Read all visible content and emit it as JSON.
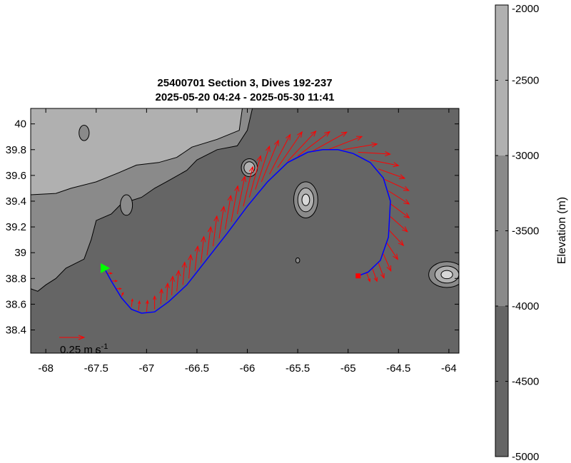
{
  "title_line1": "25400701 Section 3, Dives 192-237",
  "title_line2": "2025-05-20 04:24 - 2025-05-30 11:41",
  "colorbar_label": "Elevation (m)",
  "scale_label": "0.25 m s",
  "scale_label_sup": "-1",
  "chart_data": {
    "type": "map",
    "xlim": [
      -68.15,
      -63.9
    ],
    "ylim": [
      38.22,
      40.12
    ],
    "xticks": [
      -68,
      -67.5,
      -67,
      -66.5,
      -66,
      -65.5,
      -65,
      -64.5,
      -64
    ],
    "xtick_labels": [
      "-68",
      "-67.5",
      "-67",
      "-66.5",
      "-66",
      "-65.5",
      "-65",
      "-64.5",
      "-64"
    ],
    "yticks": [
      38.4,
      38.6,
      38.8,
      39,
      39.2,
      39.4,
      39.6,
      39.8,
      40
    ],
    "ytick_labels": [
      "38.4",
      "38.6",
      "38.8",
      "39",
      "39.2",
      "39.4",
      "39.6",
      "39.8",
      "40"
    ],
    "colorbar": {
      "min": -5000,
      "max": -2000,
      "ticks": [
        -2000,
        -2500,
        -3000,
        -3500,
        -4000,
        -4500,
        -5000
      ],
      "tick_labels": [
        "-2000",
        "-2500",
        "-3000",
        "-3500",
        "-4000",
        "-4500",
        "-5000"
      ],
      "bands": [
        {
          "from": -3000,
          "to": -2000,
          "color": "#b0b0b0"
        },
        {
          "from": -4000,
          "to": -3000,
          "color": "#8a8a8a"
        },
        {
          "from": -5000,
          "to": -4000,
          "color": "#656565"
        }
      ]
    },
    "land_contours": {
      "shelf_3000": [
        [
          -68.15,
          40.12
        ],
        [
          -66.05,
          40.12
        ],
        [
          -66.08,
          39.95
        ],
        [
          -66.3,
          39.88
        ],
        [
          -66.55,
          39.82
        ],
        [
          -66.7,
          39.74
        ],
        [
          -66.88,
          39.7
        ],
        [
          -67.1,
          39.68
        ],
        [
          -67.28,
          39.62
        ],
        [
          -67.5,
          39.55
        ],
        [
          -67.75,
          39.5
        ],
        [
          -67.9,
          39.46
        ],
        [
          -68.15,
          39.45
        ]
      ],
      "slope_4000": [
        [
          -68.15,
          40.12
        ],
        [
          -65.95,
          40.12
        ],
        [
          -66.0,
          39.95
        ],
        [
          -66.1,
          39.83
        ],
        [
          -66.3,
          39.8
        ],
        [
          -66.5,
          39.72
        ],
        [
          -66.6,
          39.64
        ],
        [
          -66.78,
          39.56
        ],
        [
          -66.92,
          39.5
        ],
        [
          -67.05,
          39.43
        ],
        [
          -67.25,
          39.38
        ],
        [
          -67.35,
          39.3
        ],
        [
          -67.5,
          39.25
        ],
        [
          -67.55,
          39.1
        ],
        [
          -67.62,
          38.95
        ],
        [
          -67.8,
          38.88
        ],
        [
          -67.9,
          38.8
        ],
        [
          -68.0,
          38.75
        ],
        [
          -68.08,
          38.7
        ],
        [
          -68.15,
          38.72
        ]
      ]
    },
    "seamounts": [
      {
        "lon": -65.42,
        "lat": 39.41,
        "rx": 0.12,
        "ry": 0.14,
        "levels": 3
      },
      {
        "lon": -64.02,
        "lat": 38.83,
        "rx": 0.18,
        "ry": 0.1,
        "levels": 3
      },
      {
        "lon": -65.98,
        "lat": 39.66,
        "rx": 0.08,
        "ry": 0.07,
        "levels": 2
      },
      {
        "lon": -67.62,
        "lat": 39.93,
        "rx": 0.05,
        "ry": 0.06,
        "levels": 1
      },
      {
        "lon": -67.2,
        "lat": 39.37,
        "rx": 0.06,
        "ry": 0.08,
        "levels": 1
      },
      {
        "lon": -65.5,
        "lat": 38.94,
        "rx": 0.02,
        "ry": 0.02,
        "levels": 1
      }
    ],
    "track": {
      "color": "#0000ff",
      "lon": [
        -67.42,
        -67.35,
        -67.25,
        -67.15,
        -67.05,
        -66.92,
        -66.78,
        -66.6,
        -66.4,
        -66.2,
        -66.0,
        -65.8,
        -65.6,
        -65.4,
        -65.25,
        -65.1,
        -64.95,
        -64.78,
        -64.65,
        -64.58,
        -64.6,
        -64.68,
        -64.8,
        -64.9
      ],
      "lat": [
        38.88,
        38.78,
        38.65,
        38.56,
        38.53,
        38.54,
        38.62,
        38.75,
        38.95,
        39.15,
        39.36,
        39.55,
        39.7,
        39.78,
        39.8,
        39.8,
        39.77,
        39.7,
        39.58,
        39.4,
        39.12,
        38.94,
        38.85,
        38.82
      ]
    },
    "start_marker": {
      "lon": -67.42,
      "lat": 38.88,
      "color": "#00ff00",
      "shape": "triangle"
    },
    "end_marker": {
      "lon": -64.9,
      "lat": 38.82,
      "color": "#ff0000",
      "shape": "square"
    },
    "velocity_vectors": {
      "color": "#ff0000",
      "scale_ms": 0.25,
      "items": [
        {
          "lon": -67.4,
          "lat": 38.84,
          "u": 0.06,
          "v": 0.0
        },
        {
          "lon": -67.35,
          "lat": 38.78,
          "u": 0.06,
          "v": 0.0
        },
        {
          "lon": -67.3,
          "lat": 38.72,
          "u": 0.05,
          "v": 0.0
        },
        {
          "lon": -67.25,
          "lat": 38.66,
          "u": 0.02,
          "v": 0.04
        },
        {
          "lon": -67.15,
          "lat": 38.58,
          "u": 0.01,
          "v": 0.08
        },
        {
          "lon": -67.08,
          "lat": 38.55,
          "u": 0.01,
          "v": 0.1
        },
        {
          "lon": -67.0,
          "lat": 38.54,
          "u": 0.01,
          "v": 0.12
        },
        {
          "lon": -66.92,
          "lat": 38.56,
          "u": 0.0,
          "v": 0.14
        },
        {
          "lon": -66.86,
          "lat": 38.6,
          "u": 0.01,
          "v": 0.16
        },
        {
          "lon": -66.8,
          "lat": 38.63,
          "u": 0.01,
          "v": 0.18
        },
        {
          "lon": -66.75,
          "lat": 38.67,
          "u": 0.01,
          "v": 0.2
        },
        {
          "lon": -66.7,
          "lat": 38.7,
          "u": 0.02,
          "v": 0.22
        },
        {
          "lon": -66.64,
          "lat": 38.75,
          "u": 0.02,
          "v": 0.24
        },
        {
          "lon": -66.58,
          "lat": 38.8,
          "u": 0.02,
          "v": 0.25
        },
        {
          "lon": -66.52,
          "lat": 38.86,
          "u": 0.03,
          "v": 0.26
        },
        {
          "lon": -66.46,
          "lat": 38.92,
          "u": 0.03,
          "v": 0.28
        },
        {
          "lon": -66.4,
          "lat": 38.98,
          "u": 0.04,
          "v": 0.3
        },
        {
          "lon": -66.34,
          "lat": 39.05,
          "u": 0.04,
          "v": 0.32
        },
        {
          "lon": -66.28,
          "lat": 39.11,
          "u": 0.05,
          "v": 0.34
        },
        {
          "lon": -66.22,
          "lat": 39.18,
          "u": 0.06,
          "v": 0.36
        },
        {
          "lon": -66.16,
          "lat": 39.24,
          "u": 0.07,
          "v": 0.38
        },
        {
          "lon": -66.1,
          "lat": 39.3,
          "u": 0.08,
          "v": 0.4
        },
        {
          "lon": -66.04,
          "lat": 39.36,
          "u": 0.1,
          "v": 0.42
        },
        {
          "lon": -65.98,
          "lat": 39.43,
          "u": 0.12,
          "v": 0.44
        },
        {
          "lon": -65.92,
          "lat": 39.49,
          "u": 0.15,
          "v": 0.46
        },
        {
          "lon": -65.86,
          "lat": 39.55,
          "u": 0.18,
          "v": 0.44
        },
        {
          "lon": -65.78,
          "lat": 39.61,
          "u": 0.22,
          "v": 0.42
        },
        {
          "lon": -65.7,
          "lat": 39.66,
          "u": 0.26,
          "v": 0.38
        },
        {
          "lon": -65.6,
          "lat": 39.71,
          "u": 0.3,
          "v": 0.32
        },
        {
          "lon": -65.5,
          "lat": 39.75,
          "u": 0.34,
          "v": 0.26
        },
        {
          "lon": -65.35,
          "lat": 39.79,
          "u": 0.36,
          "v": 0.2
        },
        {
          "lon": -65.2,
          "lat": 39.8,
          "u": 0.36,
          "v": 0.14
        },
        {
          "lon": -65.05,
          "lat": 39.8,
          "u": 0.36,
          "v": 0.06
        },
        {
          "lon": -64.9,
          "lat": 39.78,
          "u": 0.34,
          "v": -0.02
        },
        {
          "lon": -64.78,
          "lat": 39.72,
          "u": 0.3,
          "v": -0.06
        },
        {
          "lon": -64.7,
          "lat": 39.65,
          "u": 0.28,
          "v": -0.1
        },
        {
          "lon": -64.64,
          "lat": 39.57,
          "u": 0.26,
          "v": -0.12
        },
        {
          "lon": -64.6,
          "lat": 39.48,
          "u": 0.22,
          "v": -0.14
        },
        {
          "lon": -64.58,
          "lat": 39.38,
          "u": 0.2,
          "v": -0.15
        },
        {
          "lon": -64.58,
          "lat": 39.28,
          "u": 0.18,
          "v": -0.16
        },
        {
          "lon": -64.6,
          "lat": 39.18,
          "u": 0.16,
          "v": -0.17
        },
        {
          "lon": -64.62,
          "lat": 39.08,
          "u": 0.12,
          "v": -0.18
        },
        {
          "lon": -64.65,
          "lat": 38.99,
          "u": 0.08,
          "v": -0.18
        },
        {
          "lon": -64.7,
          "lat": 38.92,
          "u": 0.06,
          "v": -0.16
        },
        {
          "lon": -64.76,
          "lat": 38.88,
          "u": 0.05,
          "v": -0.14
        },
        {
          "lon": -64.82,
          "lat": 38.85,
          "u": 0.04,
          "v": -0.1
        }
      ]
    }
  }
}
